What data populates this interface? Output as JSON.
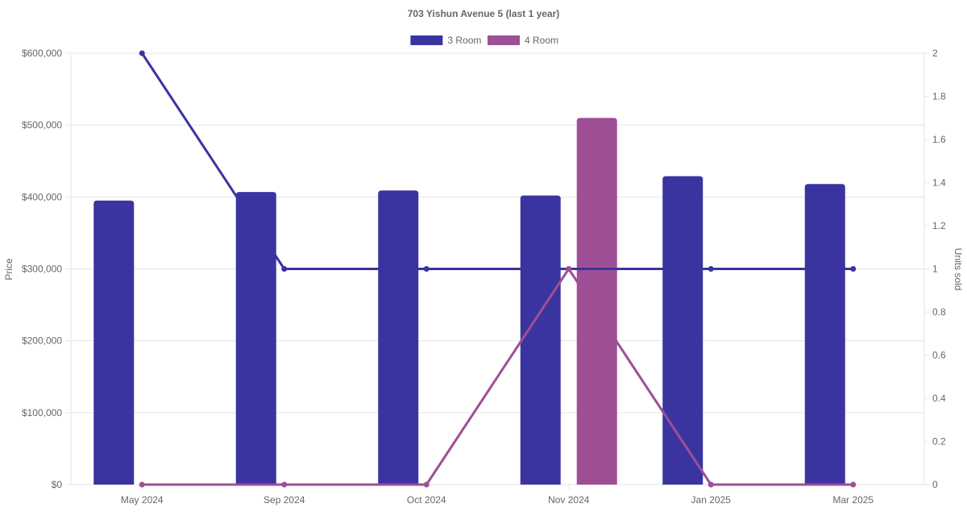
{
  "chart_data": {
    "type": "bar",
    "title": "703 Yishun Avenue 5 (last 1 year)",
    "categories": [
      "May 2024",
      "Sep 2024",
      "Oct 2024",
      "Nov 2024",
      "Jan 2025",
      "Mar 2025"
    ],
    "legend": {
      "position": "top",
      "entries": [
        {
          "label": "3 Room",
          "color": "#3a34a0"
        },
        {
          "label": "4 Room",
          "color": "#9e4f96"
        }
      ]
    },
    "y_left": {
      "label": "Price",
      "range": [
        0,
        600000
      ],
      "ticks": [
        "$0",
        "$100,000",
        "$200,000",
        "$300,000",
        "$400,000",
        "$500,000",
        "$600,000"
      ],
      "tick_values": [
        0,
        100000,
        200000,
        300000,
        400000,
        500000,
        600000
      ]
    },
    "y_right": {
      "label": "Units sold",
      "range": [
        0,
        2
      ],
      "ticks": [
        "0",
        "0.2",
        "0.4",
        "0.6",
        "0.8",
        "1",
        "1.2",
        "1.4",
        "1.6",
        "1.8",
        "2"
      ],
      "tick_values": [
        0,
        0.2,
        0.4,
        0.6,
        0.8,
        1,
        1.2,
        1.4,
        1.6,
        1.8,
        2
      ]
    },
    "grid": true,
    "bar_series": [
      {
        "name": "3 Room",
        "color": "#3a34a0",
        "values": [
          395000,
          407000,
          409000,
          402000,
          429000,
          418000
        ]
      },
      {
        "name": "4 Room",
        "color": "#9e4f96",
        "values": [
          null,
          null,
          null,
          510000,
          null,
          null
        ]
      }
    ],
    "line_series": [
      {
        "name": "3 Room",
        "color": "#3a34a0",
        "axis": "right",
        "values": [
          2,
          1,
          1,
          1,
          1,
          1
        ]
      },
      {
        "name": "4 Room",
        "color": "#9e4f96",
        "axis": "right",
        "values": [
          0,
          0,
          0,
          1,
          0,
          0
        ]
      }
    ]
  }
}
